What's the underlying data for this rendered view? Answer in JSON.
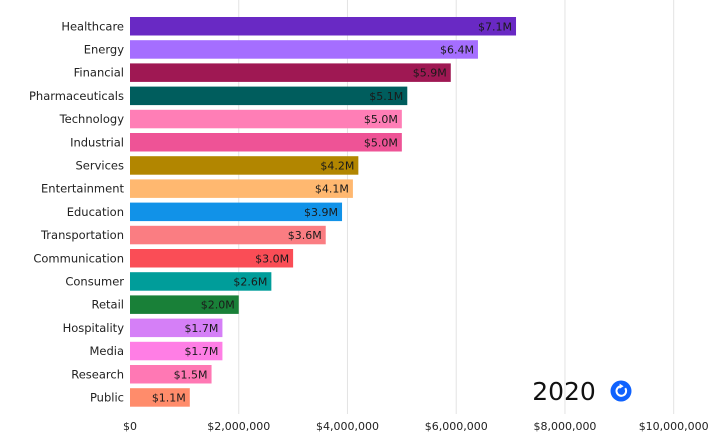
{
  "chart_data": {
    "type": "bar",
    "orientation": "horizontal",
    "categories": [
      "Healthcare",
      "Energy",
      "Financial",
      "Pharmaceuticals",
      "Technology",
      "Industrial",
      "Services",
      "Entertainment",
      "Education",
      "Transportation",
      "Communication",
      "Consumer",
      "Retail",
      "Hospitality",
      "Media",
      "Research",
      "Public"
    ],
    "values": [
      7100000,
      6400000,
      5900000,
      5100000,
      5000000,
      5000000,
      4200000,
      4100000,
      3900000,
      3600000,
      3000000,
      2600000,
      2000000,
      1700000,
      1700000,
      1500000,
      1100000
    ],
    "value_labels": [
      "$7.1M",
      "$6.4M",
      "$5.9M",
      "$5.1M",
      "$5.0M",
      "$5.0M",
      "$4.2M",
      "$4.1M",
      "$3.9M",
      "$3.6M",
      "$3.0M",
      "$2.6M",
      "$2.0M",
      "$1.7M",
      "$1.7M",
      "$1.5M",
      "$1.1M"
    ],
    "colors": [
      "#6929c4",
      "#a56eff",
      "#9f1853",
      "#005d5d",
      "#ff7eb6",
      "#ee5396",
      "#b28600",
      "#ffb870",
      "#1192e8",
      "#fa7d82",
      "#fa4d56",
      "#009d9a",
      "#198038",
      "#d57ff7",
      "#ff7ee5",
      "#ff78b4",
      "#ff8c6b"
    ],
    "x_ticks": [
      0,
      2000000,
      4000000,
      6000000,
      8000000,
      10000000
    ],
    "x_tick_labels": [
      "$0",
      "$2,000,000",
      "$4,000,000",
      "$6,000,000",
      "$8,000,000",
      "$10,000,000"
    ],
    "xlim": [
      0,
      10300000
    ],
    "grid": true,
    "title": "",
    "xlabel": "",
    "ylabel": ""
  },
  "overlay": {
    "year": "2020",
    "replay_icon": "replay-icon",
    "replay_color": "#0f62fe"
  }
}
